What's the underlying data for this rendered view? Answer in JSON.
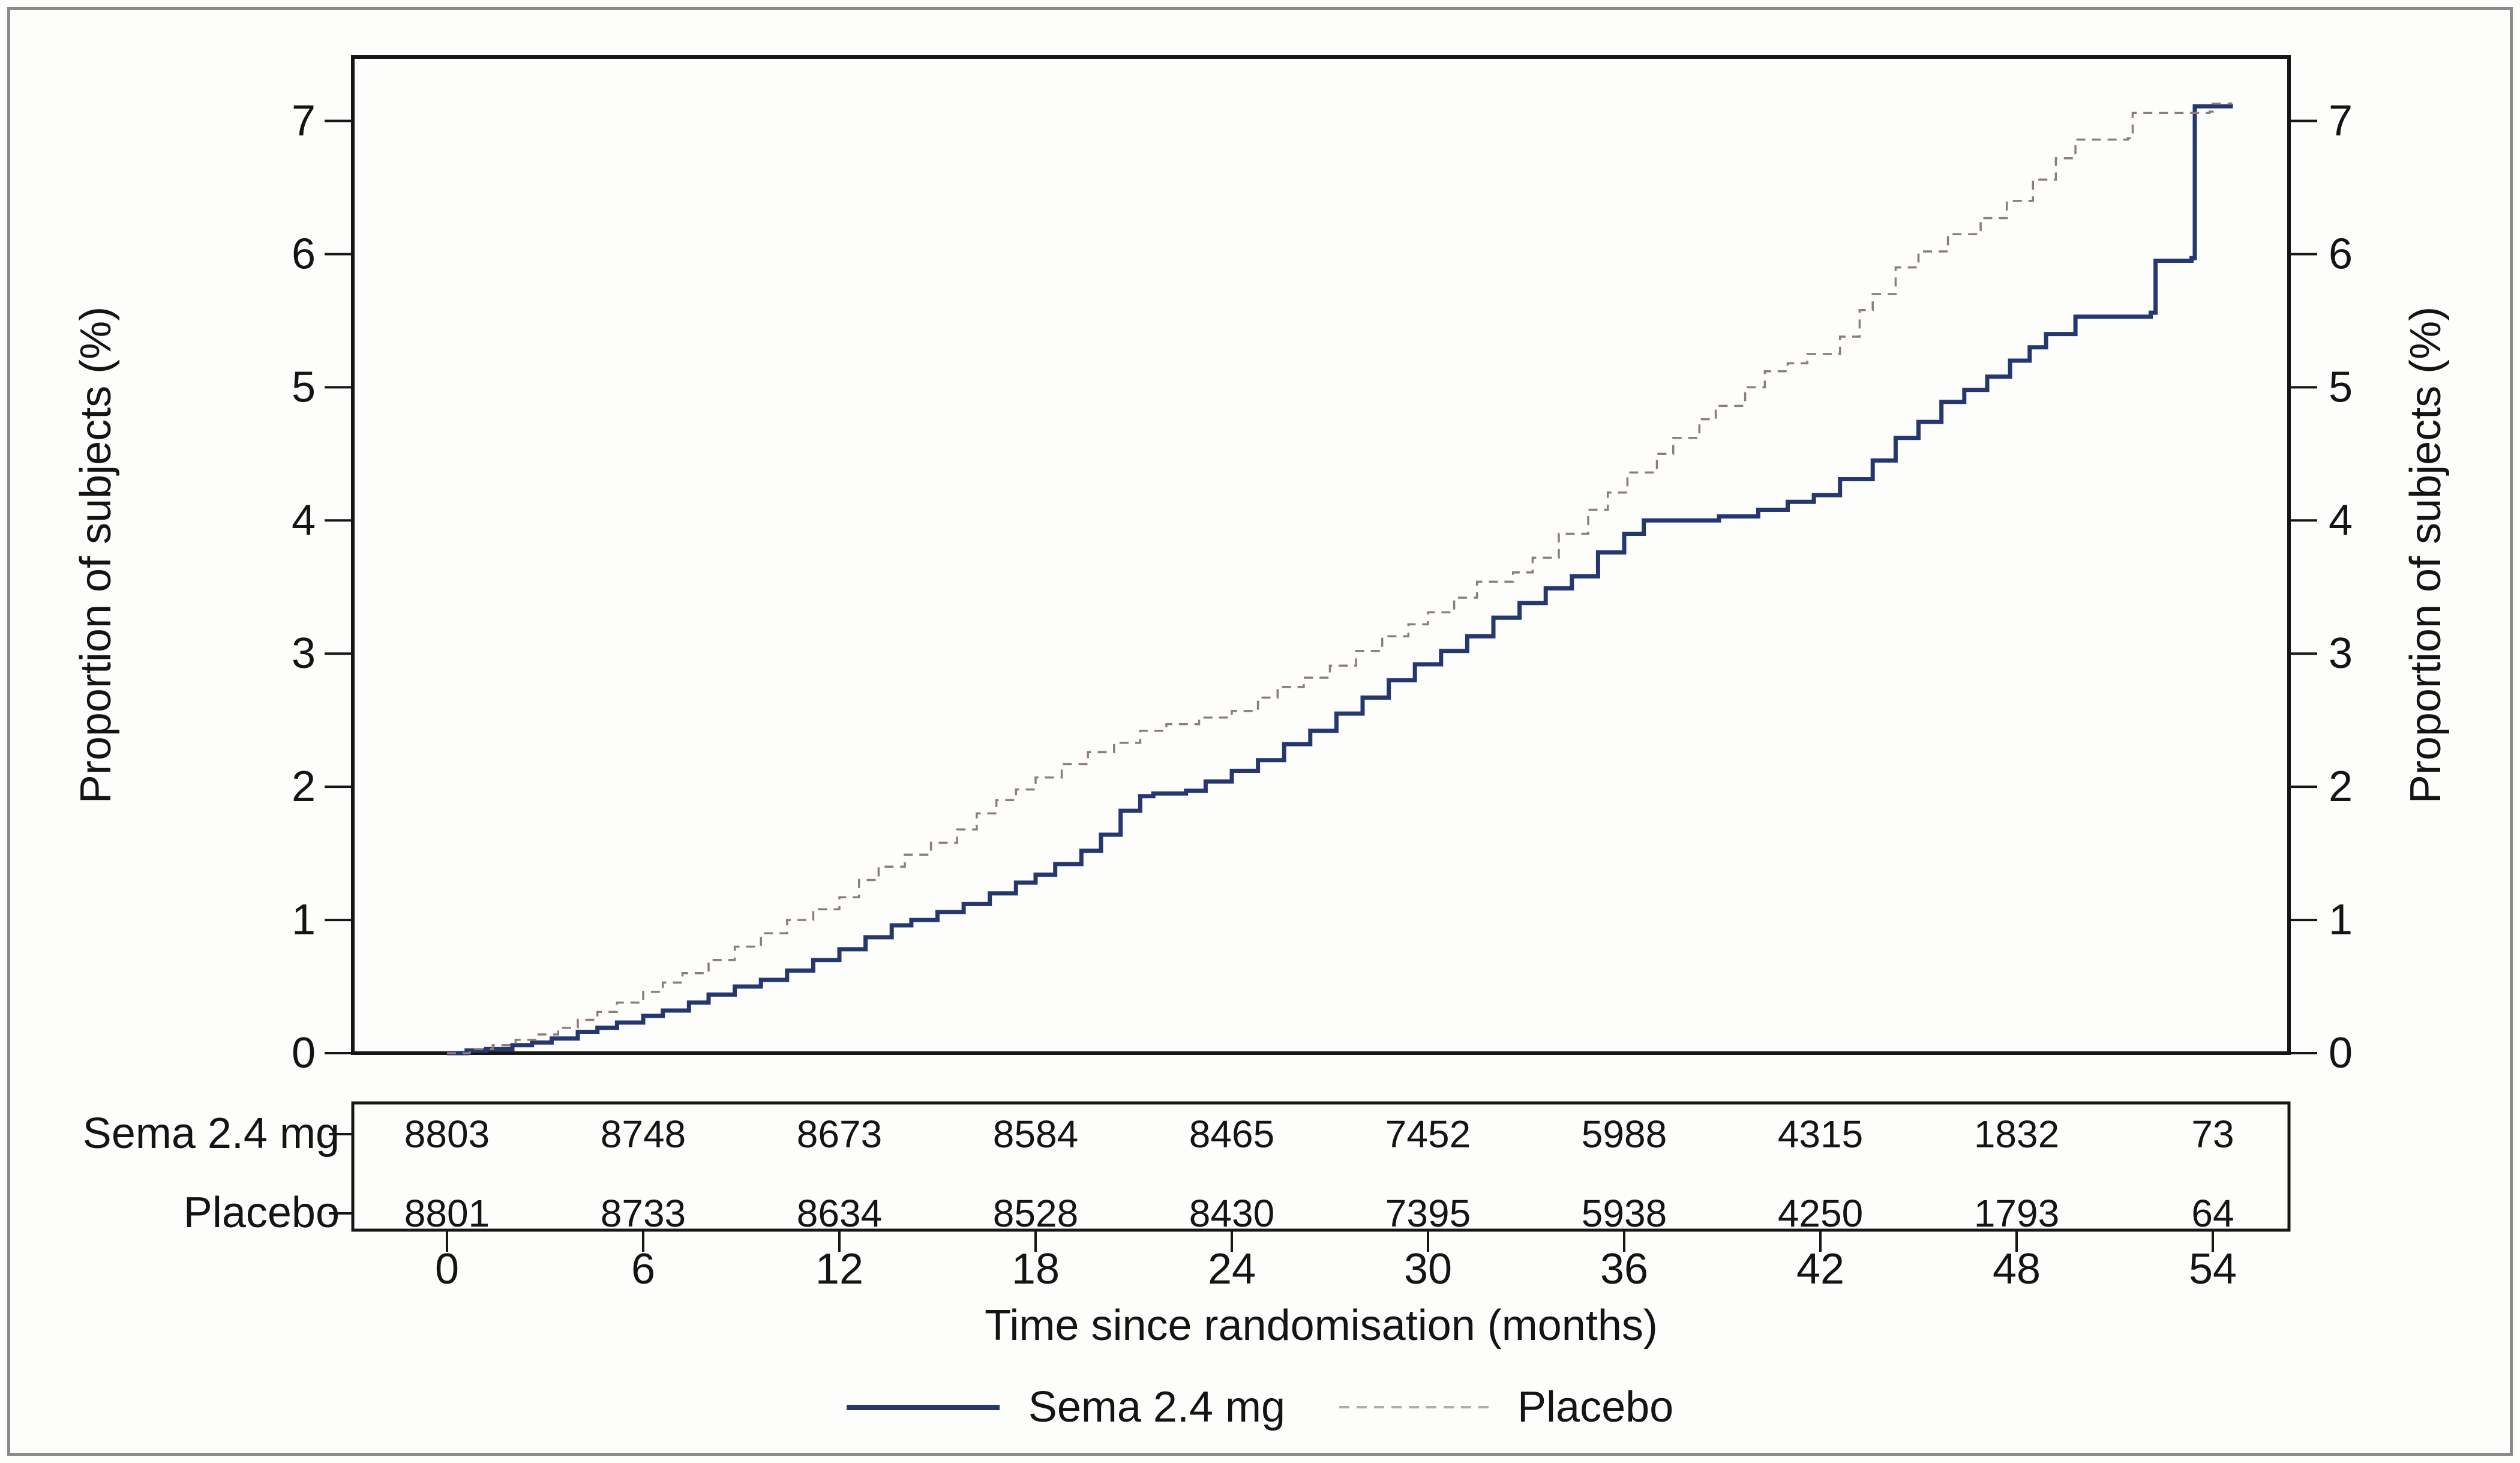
{
  "figure": {
    "background": "#fdfdfc",
    "border_color": "#8b8b8b",
    "frame_color": "#161616"
  },
  "chart_data": {
    "type": "line",
    "subtype": "kaplan-meier-step",
    "title": "",
    "xlabel": "Time since randomisation (months)",
    "ylabel": "Proportion of subjects (%)",
    "xlim": [
      -2.88,
      56.33
    ],
    "ylim": [
      0,
      7.48
    ],
    "x_ticks": [
      0,
      6,
      12,
      18,
      24,
      30,
      36,
      42,
      48,
      54
    ],
    "y_ticks": [
      0,
      1,
      2,
      3,
      4,
      5,
      6,
      7
    ],
    "grid": false,
    "legend_position": "bottom-center",
    "series": [
      {
        "name": "Sema 2.4 mg",
        "color": "#24376f",
        "style": "solid",
        "width": 7,
        "points": [
          [
            0,
            0
          ],
          [
            0.6,
            0.02
          ],
          [
            1.2,
            0.03
          ],
          [
            2,
            0.06
          ],
          [
            2.6,
            0.08
          ],
          [
            3.2,
            0.11
          ],
          [
            4,
            0.16
          ],
          [
            4.6,
            0.19
          ],
          [
            5.2,
            0.23
          ],
          [
            6,
            0.28
          ],
          [
            6.6,
            0.32
          ],
          [
            7.4,
            0.38
          ],
          [
            8,
            0.44
          ],
          [
            8.8,
            0.5
          ],
          [
            9.6,
            0.55
          ],
          [
            10.4,
            0.62
          ],
          [
            11.2,
            0.7
          ],
          [
            12,
            0.78
          ],
          [
            12.8,
            0.87
          ],
          [
            13.6,
            0.96
          ],
          [
            14.2,
            1.0
          ],
          [
            15,
            1.06
          ],
          [
            15.8,
            1.12
          ],
          [
            16.6,
            1.2
          ],
          [
            17.4,
            1.28
          ],
          [
            18,
            1.34
          ],
          [
            18.6,
            1.42
          ],
          [
            19.4,
            1.52
          ],
          [
            20,
            1.64
          ],
          [
            20.6,
            1.82
          ],
          [
            21.2,
            1.93
          ],
          [
            21.6,
            1.95
          ],
          [
            22.6,
            1.97
          ],
          [
            23.2,
            2.04
          ],
          [
            24,
            2.12
          ],
          [
            24.8,
            2.2
          ],
          [
            25.6,
            2.32
          ],
          [
            26.4,
            2.42
          ],
          [
            27.2,
            2.55
          ],
          [
            28,
            2.67
          ],
          [
            28.8,
            2.8
          ],
          [
            29.6,
            2.92
          ],
          [
            30.4,
            3.02
          ],
          [
            31.2,
            3.13
          ],
          [
            32,
            3.27
          ],
          [
            32.8,
            3.38
          ],
          [
            33.6,
            3.49
          ],
          [
            34.4,
            3.58
          ],
          [
            35.2,
            3.76
          ],
          [
            36,
            3.9
          ],
          [
            36.6,
            4.0
          ],
          [
            38.9,
            4.03
          ],
          [
            40.1,
            4.08
          ],
          [
            41,
            4.14
          ],
          [
            41.8,
            4.19
          ],
          [
            42.6,
            4.31
          ],
          [
            43.6,
            4.45
          ],
          [
            44.3,
            4.62
          ],
          [
            45,
            4.74
          ],
          [
            45.7,
            4.89
          ],
          [
            46.4,
            4.98
          ],
          [
            47.1,
            5.08
          ],
          [
            47.8,
            5.2
          ],
          [
            48.4,
            5.3
          ],
          [
            48.9,
            5.4
          ],
          [
            49.8,
            5.53
          ],
          [
            52.1,
            5.56
          ],
          [
            52.25,
            5.95
          ],
          [
            53.35,
            5.97
          ],
          [
            53.45,
            7.11
          ],
          [
            54.55,
            7.13
          ]
        ]
      },
      {
        "name": "Placebo",
        "color": "#8d7d74",
        "style": "dashed",
        "width": 3.5,
        "dash": [
          15,
          11
        ],
        "points": [
          [
            0,
            0
          ],
          [
            0.7,
            0.03
          ],
          [
            1.4,
            0.06
          ],
          [
            2.1,
            0.1
          ],
          [
            2.8,
            0.14
          ],
          [
            3.4,
            0.19
          ],
          [
            4,
            0.25
          ],
          [
            4.6,
            0.31
          ],
          [
            5.2,
            0.38
          ],
          [
            6,
            0.46
          ],
          [
            6.6,
            0.53
          ],
          [
            7.2,
            0.6
          ],
          [
            8,
            0.7
          ],
          [
            8.8,
            0.8
          ],
          [
            9.6,
            0.9
          ],
          [
            10.4,
            1.0
          ],
          [
            11.2,
            1.08
          ],
          [
            12,
            1.17
          ],
          [
            12.6,
            1.3
          ],
          [
            13.2,
            1.4
          ],
          [
            14,
            1.49
          ],
          [
            14.8,
            1.58
          ],
          [
            15.6,
            1.68
          ],
          [
            16.2,
            1.8
          ],
          [
            16.8,
            1.9
          ],
          [
            17.4,
            1.98
          ],
          [
            18,
            2.07
          ],
          [
            18.8,
            2.17
          ],
          [
            19.6,
            2.26
          ],
          [
            20.4,
            2.33
          ],
          [
            21.2,
            2.42
          ],
          [
            22,
            2.47
          ],
          [
            23,
            2.52
          ],
          [
            24,
            2.57
          ],
          [
            24.8,
            2.67
          ],
          [
            25.4,
            2.75
          ],
          [
            26.2,
            2.82
          ],
          [
            27,
            2.91
          ],
          [
            27.8,
            3.02
          ],
          [
            28.6,
            3.13
          ],
          [
            29.4,
            3.22
          ],
          [
            30,
            3.31
          ],
          [
            30.8,
            3.42
          ],
          [
            31.5,
            3.54
          ],
          [
            32.6,
            3.61
          ],
          [
            33.2,
            3.72
          ],
          [
            34,
            3.9
          ],
          [
            34.9,
            4.08
          ],
          [
            35.5,
            4.21
          ],
          [
            36.1,
            4.36
          ],
          [
            37,
            4.5
          ],
          [
            37.5,
            4.62
          ],
          [
            38.3,
            4.76
          ],
          [
            38.8,
            4.86
          ],
          [
            39.7,
            5.0
          ],
          [
            40.3,
            5.12
          ],
          [
            41,
            5.18
          ],
          [
            41.6,
            5.25
          ],
          [
            42.6,
            5.38
          ],
          [
            43.2,
            5.58
          ],
          [
            43.6,
            5.7
          ],
          [
            44.3,
            5.9
          ],
          [
            45,
            6.02
          ],
          [
            45.9,
            6.15
          ],
          [
            46.9,
            6.27
          ],
          [
            47.7,
            6.4
          ],
          [
            48.5,
            6.56
          ],
          [
            49.2,
            6.72
          ],
          [
            49.8,
            6.86
          ],
          [
            51.4,
            6.87
          ],
          [
            51.55,
            7.06
          ],
          [
            53.9,
            7.07
          ],
          [
            54.0,
            7.13
          ],
          [
            54.55,
            7.14
          ]
        ]
      }
    ]
  },
  "risk_table": {
    "months": [
      0,
      6,
      12,
      18,
      24,
      30,
      36,
      42,
      48,
      54
    ],
    "rows": [
      {
        "label": "Sema 2.4 mg",
        "counts": [
          "8803",
          "8748",
          "8673",
          "8584",
          "8465",
          "7452",
          "5988",
          "4315",
          "1832",
          "73"
        ]
      },
      {
        "label": "Placebo",
        "counts": [
          "8801",
          "8733",
          "8634",
          "8528",
          "8430",
          "7395",
          "5938",
          "4250",
          "1793",
          "64"
        ]
      }
    ]
  },
  "legend": {
    "items": [
      {
        "label": "Sema 2.4 mg",
        "color": "#24376f",
        "style": "solid"
      },
      {
        "label": "Placebo",
        "color": "#b3aba5",
        "style": "dashed"
      }
    ]
  }
}
